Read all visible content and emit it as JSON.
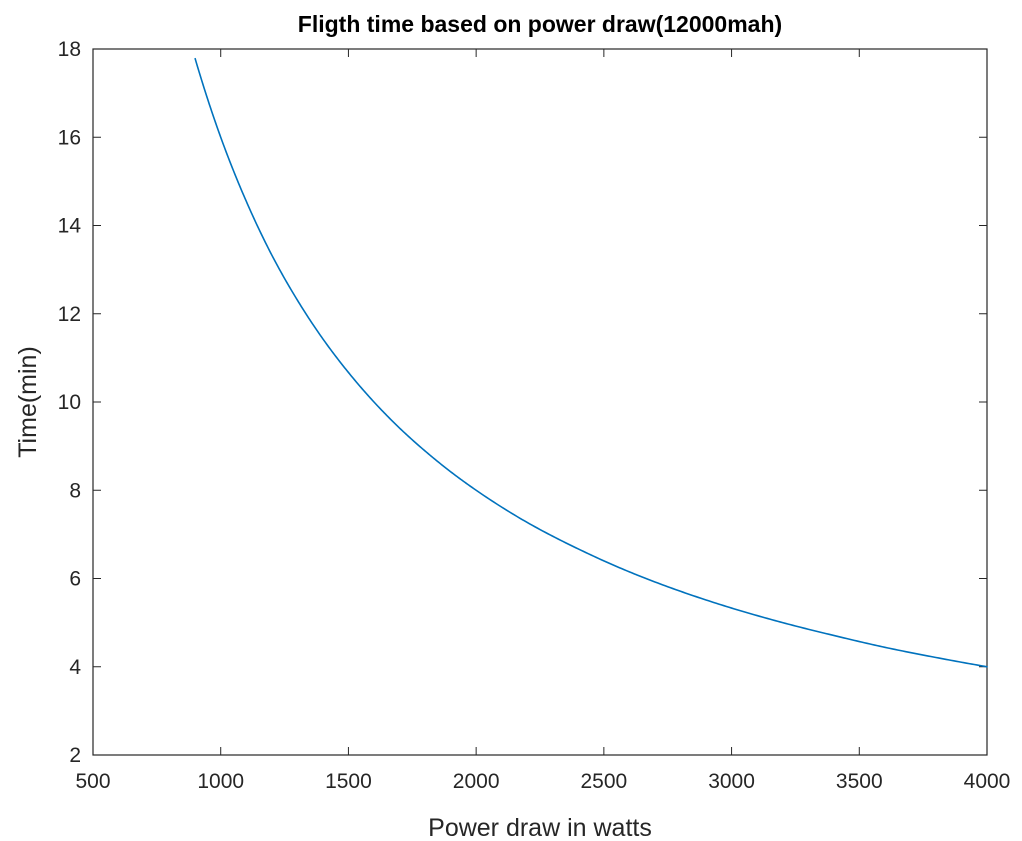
{
  "chart_data": {
    "type": "line",
    "title": "Fligth time based on power draw(12000mah)",
    "xlabel": "Power draw in watts",
    "ylabel": "Time(min)",
    "xlim": [
      500,
      4000
    ],
    "ylim": [
      2,
      18
    ],
    "xticks": [
      500,
      1000,
      1500,
      2000,
      2500,
      3000,
      3500,
      4000
    ],
    "yticks": [
      2,
      4,
      6,
      8,
      10,
      12,
      14,
      16,
      18
    ],
    "grid": true,
    "series": [
      {
        "color": "#0072BD",
        "x": [
          900,
          1000,
          1100,
          1200,
          1300,
          1400,
          1500,
          1600,
          1700,
          1800,
          1900,
          2000,
          2200,
          2400,
          2600,
          2800,
          3000,
          3200,
          3400,
          3600,
          3800,
          4000
        ],
        "y": [
          17.78,
          16.0,
          14.55,
          13.33,
          12.31,
          11.43,
          10.67,
          10.0,
          9.41,
          8.89,
          8.42,
          8.0,
          7.27,
          6.67,
          6.15,
          5.71,
          5.33,
          5.0,
          4.71,
          4.44,
          4.21,
          4.0
        ]
      }
    ]
  }
}
